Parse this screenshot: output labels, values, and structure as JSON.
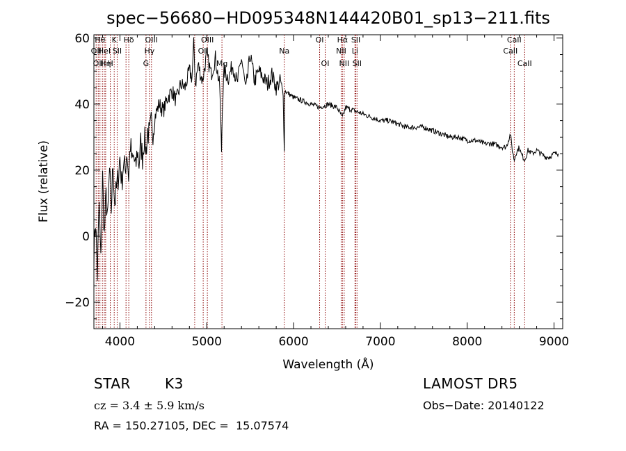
{
  "chart_data": {
    "type": "line",
    "title": "spec−56680−HD095348N144420B01_sp13−211.fits",
    "xlabel": "Wavelength (Å)",
    "ylabel": "Flux (relative)",
    "xlim": [
      3700,
      9100
    ],
    "ylim": [
      -28,
      61
    ],
    "xticks": [
      4000,
      5000,
      6000,
      7000,
      8000,
      9000
    ],
    "yticks": [
      -20,
      0,
      20,
      40,
      60
    ],
    "ytick_labels": [
      "−20",
      "0",
      "20",
      "40",
      "60"
    ],
    "grid": false,
    "line_color": "#000000",
    "marker_color": "#8b0000",
    "spectrum": {
      "x": [
        3700,
        3720,
        3740,
        3760,
        3780,
        3800,
        3820,
        3840,
        3860,
        3880,
        3900,
        3920,
        3940,
        3960,
        3980,
        4000,
        4020,
        4040,
        4060,
        4080,
        4100,
        4120,
        4140,
        4160,
        4180,
        4200,
        4220,
        4240,
        4260,
        4280,
        4300,
        4320,
        4340,
        4360,
        4380,
        4400,
        4450,
        4500,
        4550,
        4600,
        4650,
        4700,
        4750,
        4800,
        4830,
        4850,
        4870,
        4900,
        4950,
        5000,
        5050,
        5100,
        5150,
        5170,
        5180,
        5200,
        5250,
        5300,
        5350,
        5400,
        5450,
        5500,
        5550,
        5600,
        5650,
        5700,
        5750,
        5800,
        5850,
        5880,
        5893,
        5900,
        5950,
        6000,
        6100,
        6200,
        6300,
        6400,
        6500,
        6563,
        6600,
        6700,
        6800,
        6900,
        7000,
        7100,
        7200,
        7300,
        7400,
        7500,
        7600,
        7700,
        7800,
        7900,
        8000,
        8100,
        8200,
        8300,
        8400,
        8450,
        8498,
        8520,
        8542,
        8560,
        8600,
        8620,
        8662,
        8700,
        8750,
        8800,
        8850,
        8900,
        8950,
        9000,
        9050
      ],
      "y": [
        -5,
        5,
        -12,
        10,
        -8,
        18,
        0,
        12,
        5,
        20,
        8,
        22,
        10,
        14,
        18,
        24,
        16,
        22,
        20,
        26,
        18,
        28,
        22,
        24,
        20,
        26,
        22,
        28,
        24,
        30,
        26,
        32,
        30,
        34,
        32,
        36,
        40,
        38,
        42,
        44,
        41,
        46,
        45,
        50,
        48,
        58,
        46,
        52,
        47,
        55,
        49,
        54,
        45,
        26,
        40,
        50,
        48,
        52,
        46,
        54,
        44,
        55,
        47,
        50,
        48,
        46,
        49,
        45,
        47,
        42,
        28,
        44,
        43,
        42,
        41,
        40,
        39,
        40,
        39,
        36,
        39,
        38,
        37,
        36,
        35,
        35,
        34,
        33,
        33,
        33,
        32,
        31,
        30,
        30,
        29,
        29,
        28,
        28,
        27,
        27,
        31,
        26,
        23,
        25,
        27,
        25,
        23,
        26,
        25,
        26,
        25,
        24,
        24,
        25,
        25
      ]
    },
    "line_markers": [
      {
        "wavelength": 3726,
        "label": "OII",
        "row": 2
      },
      {
        "wavelength": 3750,
        "label": "OII",
        "row": 3
      },
      {
        "wavelength": 3770,
        "label": "Hθ",
        "row": 1
      },
      {
        "wavelength": 3798,
        "label": "",
        "row": 0
      },
      {
        "wavelength": 3820,
        "label": "HeI",
        "row": 2
      },
      {
        "wavelength": 3835,
        "label": "Hη",
        "row": 3
      },
      {
        "wavelength": 3889,
        "label": "H",
        "row": 3
      },
      {
        "wavelength": 3934,
        "label": "K",
        "row": 1
      },
      {
        "wavelength": 3968,
        "label": "SII",
        "row": 2
      },
      {
        "wavelength": 4070,
        "label": "",
        "row": 0
      },
      {
        "wavelength": 4102,
        "label": "Hδ",
        "row": 1
      },
      {
        "wavelength": 4300,
        "label": "G",
        "row": 3
      },
      {
        "wavelength": 4340,
        "label": "Hγ",
        "row": 2
      },
      {
        "wavelength": 4363,
        "label": "OIII",
        "row": 1
      },
      {
        "wavelength": 4861,
        "label": "",
        "row": 0
      },
      {
        "wavelength": 4959,
        "label": "OII",
        "row": 2
      },
      {
        "wavelength": 5007,
        "label": "OIII",
        "row": 1
      },
      {
        "wavelength": 5175,
        "label": "Mg",
        "row": 3
      },
      {
        "wavelength": 5893,
        "label": "Na",
        "row": 2
      },
      {
        "wavelength": 6300,
        "label": "OI",
        "row": 1
      },
      {
        "wavelength": 6364,
        "label": "OI",
        "row": 3
      },
      {
        "wavelength": 6548,
        "label": "NII",
        "row": 2
      },
      {
        "wavelength": 6563,
        "label": "Hα",
        "row": 1
      },
      {
        "wavelength": 6583,
        "label": "NII",
        "row": 3
      },
      {
        "wavelength": 6707,
        "label": "Li",
        "row": 2
      },
      {
        "wavelength": 6717,
        "label": "SII",
        "row": 1
      },
      {
        "wavelength": 6731,
        "label": "SII",
        "row": 3
      },
      {
        "wavelength": 8498,
        "label": "CaII",
        "row": 2
      },
      {
        "wavelength": 8542,
        "label": "CaII",
        "row": 1
      },
      {
        "wavelength": 8662,
        "label": "CaII",
        "row": 3
      }
    ]
  },
  "info": {
    "object_class": "STAR",
    "subclass": "K3",
    "survey": "LAMOST DR5",
    "redshift": "cz = 3.4 ± 5.9 km/s",
    "obs_date": "Obs−Date: 20140122",
    "coords": "RA = 150.27105, DEC =  15.07574"
  }
}
